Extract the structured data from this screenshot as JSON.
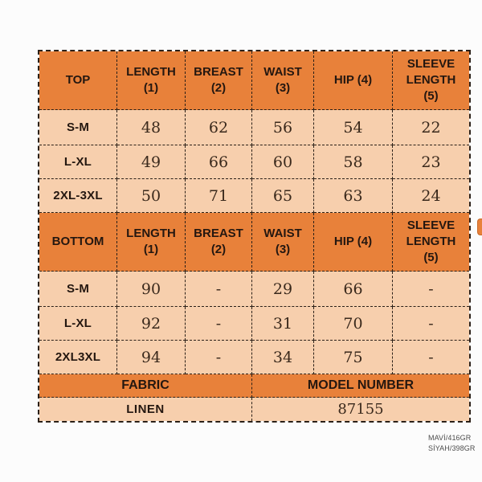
{
  "colors": {
    "header_bg": "#e8813a",
    "cell_bg": "#f7cfad",
    "border": "#2b2018",
    "header_text": "#241710",
    "number_text": "#3a291c"
  },
  "table": {
    "top": {
      "header": [
        "TOP",
        "LENGTH\n(1)",
        "BREAST\n(2)",
        "WAIST\n(3)",
        "HIP (4)",
        "SLEEVE\nLENGTH\n(5)"
      ],
      "rows": [
        [
          "S-M",
          "48",
          "62",
          "56",
          "54",
          "22"
        ],
        [
          "L-XL",
          "49",
          "66",
          "60",
          "58",
          "23"
        ],
        [
          "2XL-3XL",
          "50",
          "71",
          "65",
          "63",
          "24"
        ]
      ]
    },
    "bottom": {
      "header": [
        "BOTTOM",
        "LENGTH\n(1)",
        "BREAST\n(2)",
        "WAIST\n(3)",
        "HIP (4)",
        "SLEEVE\nLENGTH\n(5)"
      ],
      "rows": [
        [
          "S-M",
          "90",
          "-",
          "29",
          "66",
          "-"
        ],
        [
          "L-XL",
          "92",
          "-",
          "31",
          "70",
          "-"
        ],
        [
          "2XL3XL",
          "94",
          "-",
          "34",
          "75",
          "-"
        ]
      ]
    },
    "footer": {
      "headers": [
        "FABRIC",
        "MODEL NUMBER"
      ],
      "values": [
        "LINEN",
        "87155"
      ]
    }
  },
  "watermark": {
    "line1": "MAVİ/416GR",
    "line2": "SİYAH/398GR"
  }
}
